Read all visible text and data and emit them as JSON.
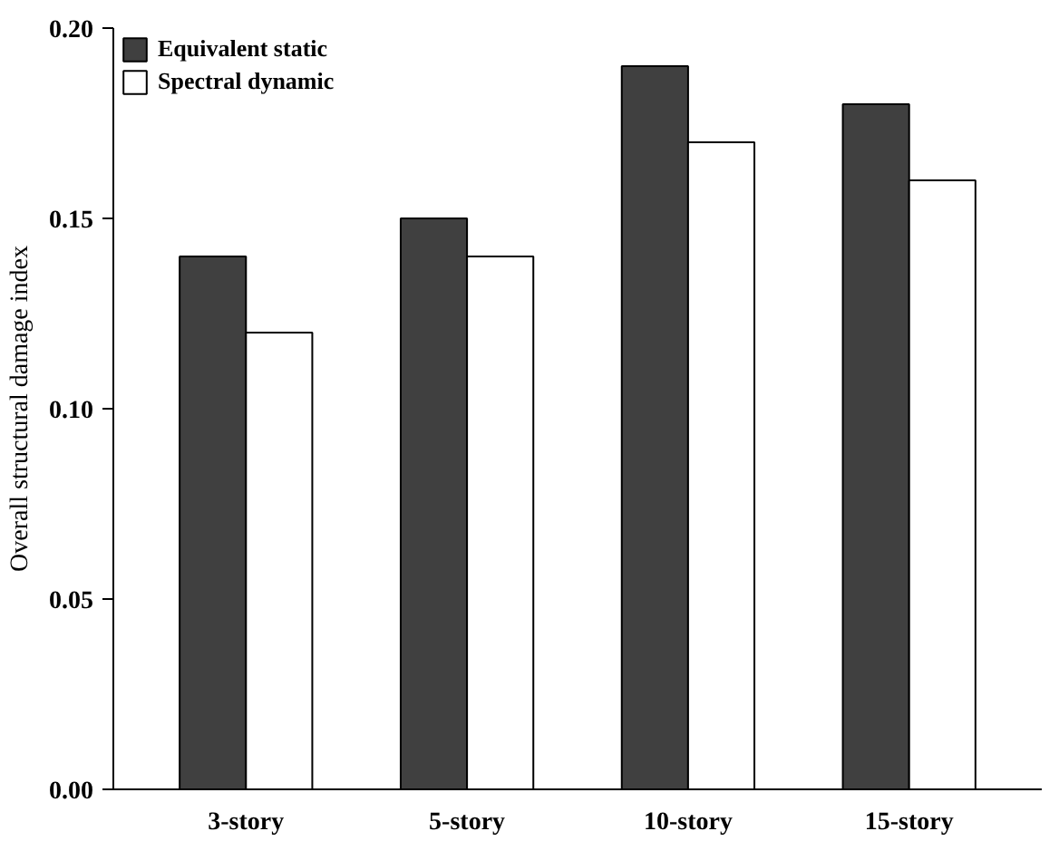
{
  "chart_data": {
    "type": "bar",
    "ylabel": "Overall structural damage index",
    "categories": [
      "3-story",
      "5-story",
      "10-story",
      "15-story"
    ],
    "series": [
      {
        "name": "Equivalent static",
        "color": "#404040",
        "values": [
          0.14,
          0.15,
          0.19,
          0.18
        ]
      },
      {
        "name": "Spectral dynamic",
        "color": "#ffffff",
        "values": [
          0.12,
          0.14,
          0.17,
          0.16
        ]
      }
    ],
    "ylim": [
      0,
      0.2
    ],
    "yticks": [
      {
        "value": 0,
        "label": "0.00"
      },
      {
        "value": 0.05,
        "label": "0.05"
      },
      {
        "value": 0.1,
        "label": "0.10"
      },
      {
        "value": 0.15,
        "label": "0.15"
      },
      {
        "value": 0.2,
        "label": "0.20"
      }
    ],
    "grid": false,
    "legend": "top left"
  }
}
